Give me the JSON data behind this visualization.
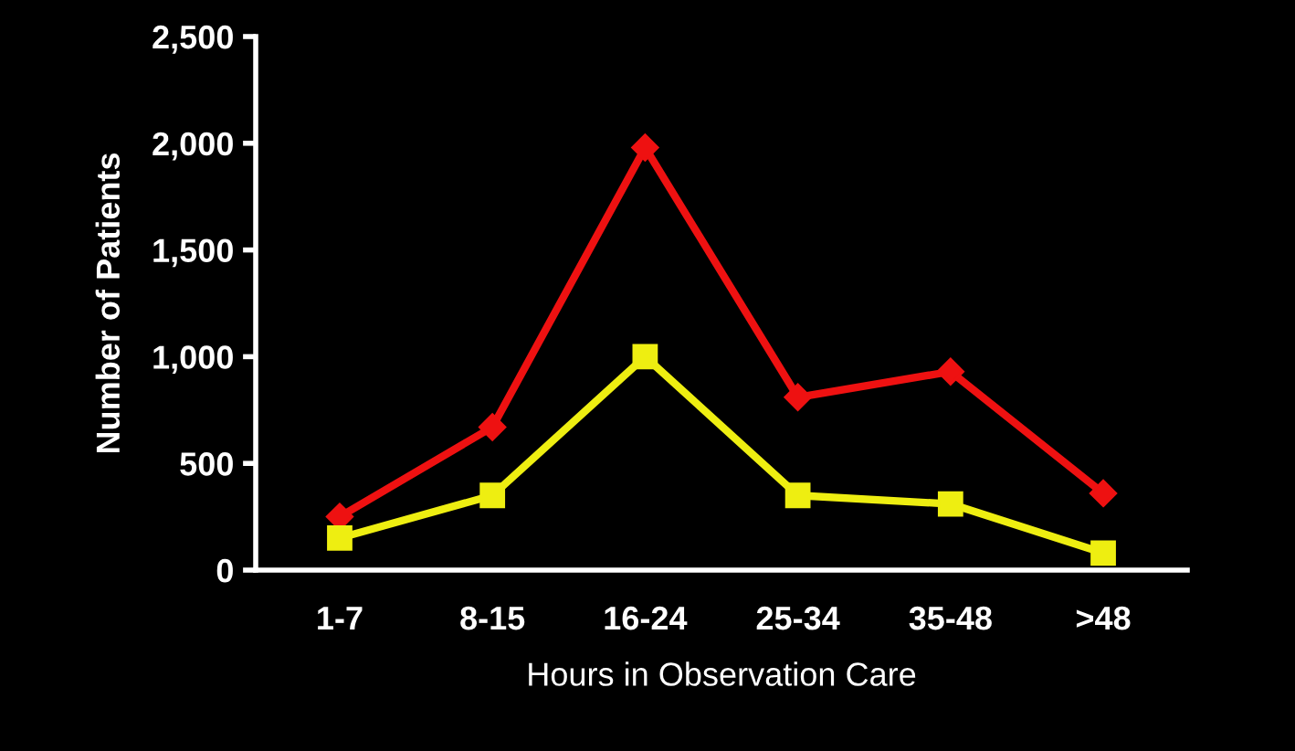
{
  "chart_data": {
    "type": "line",
    "xlabel": "Hours in Observation Care",
    "ylabel": "Number of Patients",
    "categories": [
      "1-7",
      "8-15",
      "16-24",
      "25-34",
      "35-48",
      ">48"
    ],
    "series": [
      {
        "color": "#ee1111",
        "marker": "diamond",
        "values": [
          250,
          670,
          1980,
          810,
          930,
          360
        ]
      },
      {
        "color": "#eeee11",
        "marker": "square",
        "values": [
          150,
          350,
          1000,
          350,
          310,
          80
        ]
      }
    ],
    "ylim": [
      0,
      2500
    ],
    "yticks": [
      {
        "value": 0,
        "label": "0"
      },
      {
        "value": 500,
        "label": "500"
      },
      {
        "value": 1000,
        "label": "1,000"
      },
      {
        "value": 1500,
        "label": "1,500"
      },
      {
        "value": 2000,
        "label": "2,000"
      },
      {
        "value": 2500,
        "label": "2,500"
      }
    ],
    "grid": false,
    "legend": false,
    "line_style": "solid"
  }
}
